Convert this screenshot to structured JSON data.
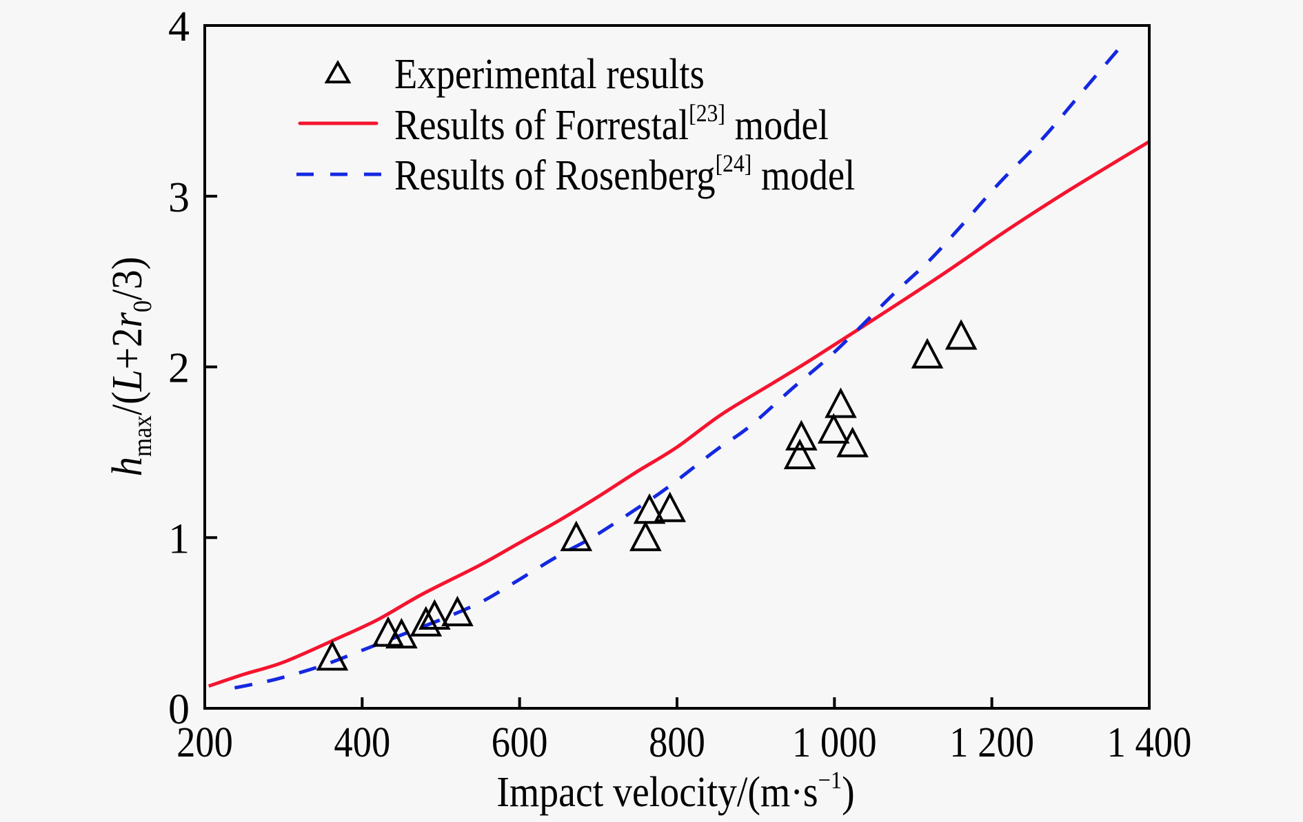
{
  "chart_data": {
    "type": "scatter",
    "title": "",
    "xlabel": "Impact velocity/(m·s⁻¹)",
    "xlabel_parts": {
      "main": "Impact velocity/(m·s",
      "sup": "−1",
      "close": ")"
    },
    "ylabel": "hmax/(L+2r0/3)",
    "ylabel_parts": [
      {
        "text": "h",
        "style": "italic"
      },
      {
        "text": "max",
        "style": "sub"
      },
      {
        "text": "/(",
        "style": "normal"
      },
      {
        "text": "L",
        "style": "italic"
      },
      {
        "text": "+2",
        "style": "normal"
      },
      {
        "text": "r",
        "style": "italic"
      },
      {
        "text": "0",
        "style": "sub"
      },
      {
        "text": "/3)",
        "style": "normal"
      }
    ],
    "xlim": [
      200,
      1400
    ],
    "ylim": [
      0,
      4
    ],
    "x_ticks": [
      200,
      400,
      600,
      800,
      1000,
      1200,
      1400
    ],
    "x_tick_labels": [
      "200",
      "400",
      "600",
      "800",
      "1 000",
      "1 200",
      "1 400"
    ],
    "y_ticks": [
      0,
      1,
      2,
      3,
      4
    ],
    "y_tick_labels": [
      "0",
      "1",
      "2",
      "3",
      "4"
    ],
    "grid": false,
    "legend_position": "top-left",
    "series": [
      {
        "name": "Experimental results",
        "kind": "scatter",
        "marker": "triangle-open",
        "color": "#000000",
        "points": [
          [
            362,
            0.28
          ],
          [
            433,
            0.42
          ],
          [
            450,
            0.41
          ],
          [
            481,
            0.48
          ],
          [
            492,
            0.52
          ],
          [
            521,
            0.54
          ],
          [
            672,
            0.98
          ],
          [
            760,
            0.98
          ],
          [
            765,
            1.14
          ],
          [
            791,
            1.15
          ],
          [
            956,
            1.46
          ],
          [
            958,
            1.57
          ],
          [
            999,
            1.61
          ],
          [
            1008,
            1.76
          ],
          [
            1023,
            1.53
          ],
          [
            1118,
            2.05
          ],
          [
            1161,
            2.16
          ]
        ]
      },
      {
        "name": "Results of Forrestal model",
        "ref": "[23]",
        "kind": "line",
        "style": "solid",
        "color": "#f5142f",
        "points": [
          [
            205,
            0.13
          ],
          [
            250,
            0.2
          ],
          [
            300,
            0.27
          ],
          [
            369,
            0.41
          ],
          [
            420,
            0.52
          ],
          [
            477,
            0.67
          ],
          [
            550,
            0.84
          ],
          [
            600,
            0.97
          ],
          [
            650,
            1.1
          ],
          [
            700,
            1.24
          ],
          [
            747,
            1.38
          ],
          [
            800,
            1.53
          ],
          [
            856,
            1.72
          ],
          [
            920,
            1.9
          ],
          [
            973,
            2.05
          ],
          [
            1064,
            2.32
          ],
          [
            1140,
            2.55
          ],
          [
            1219,
            2.8
          ],
          [
            1300,
            3.04
          ],
          [
            1400,
            3.32
          ]
        ]
      },
      {
        "name": "Results of Rosenberg model",
        "ref": "[24]",
        "kind": "line",
        "style": "dashed",
        "color": "#1428e0",
        "points": [
          [
            238,
            0.12
          ],
          [
            290,
            0.17
          ],
          [
            349,
            0.25
          ],
          [
            400,
            0.34
          ],
          [
            450,
            0.43
          ],
          [
            500,
            0.52
          ],
          [
            550,
            0.62
          ],
          [
            591,
            0.73
          ],
          [
            648,
            0.89
          ],
          [
            692,
            1.0
          ],
          [
            749,
            1.17
          ],
          [
            790,
            1.3
          ],
          [
            849,
            1.51
          ],
          [
            892,
            1.65
          ],
          [
            948,
            1.88
          ],
          [
            989,
            2.04
          ],
          [
            1030,
            2.22
          ],
          [
            1078,
            2.44
          ],
          [
            1120,
            2.62
          ],
          [
            1160,
            2.82
          ],
          [
            1210,
            3.08
          ],
          [
            1265,
            3.34
          ],
          [
            1320,
            3.64
          ],
          [
            1368,
            3.9
          ]
        ]
      }
    ]
  },
  "legend": {
    "items": [
      {
        "label": "Experimental results",
        "sup": "",
        "suffix": ""
      },
      {
        "label": "Results of Forrestal",
        "sup": "[23]",
        "suffix": " model"
      },
      {
        "label": "Results of Rosenberg",
        "sup": "[24]",
        "suffix": " model"
      }
    ]
  }
}
